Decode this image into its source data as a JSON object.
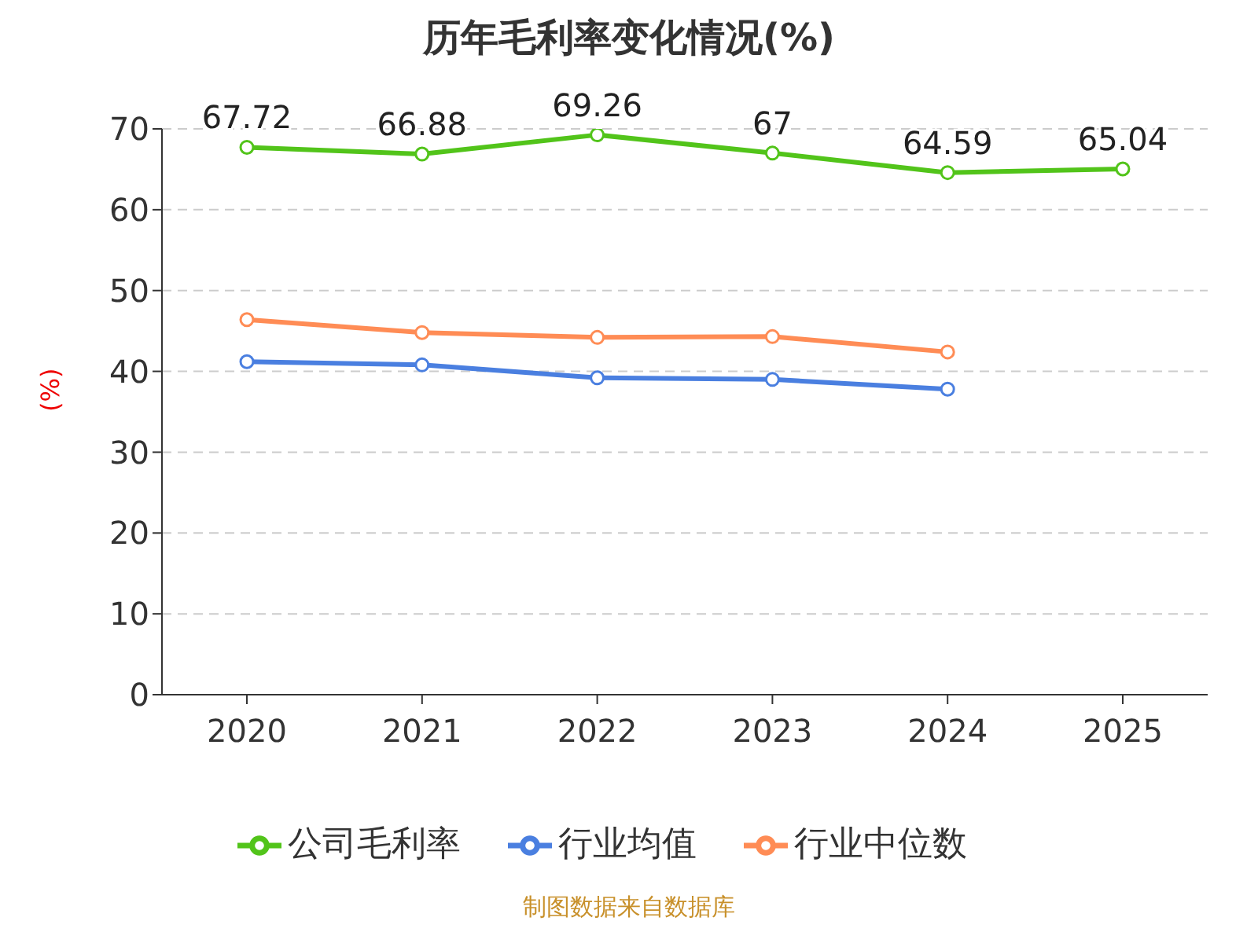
{
  "chart_data": {
    "type": "line",
    "title": "历年毛利率变化情况(%)",
    "ylabel": "(%)",
    "categories": [
      "2020",
      "2021",
      "2022",
      "2023",
      "2024",
      "2025"
    ],
    "series": [
      {
        "name": "公司毛利率",
        "color": "#52c41a",
        "values": [
          67.72,
          66.88,
          69.26,
          67,
          64.59,
          65.04
        ],
        "value_labels": [
          "67.72",
          "66.88",
          "69.26",
          "67",
          "64.59",
          "65.04"
        ]
      },
      {
        "name": "行业均值",
        "color": "#4a7fe0",
        "values": [
          41.2,
          40.8,
          39.2,
          39.0,
          37.8,
          null
        ]
      },
      {
        "name": "行业中位数",
        "color": "#ff8c55",
        "values": [
          46.4,
          44.8,
          44.2,
          44.3,
          42.4,
          null
        ]
      }
    ],
    "ylim": [
      0,
      70
    ],
    "yticks": [
      0,
      10,
      20,
      30,
      40,
      50,
      60,
      70
    ],
    "grid": "y",
    "legend": "bottom",
    "marker": "circle",
    "line_style": "solid",
    "annotations": [
      "制图数据来自数据库"
    ]
  }
}
